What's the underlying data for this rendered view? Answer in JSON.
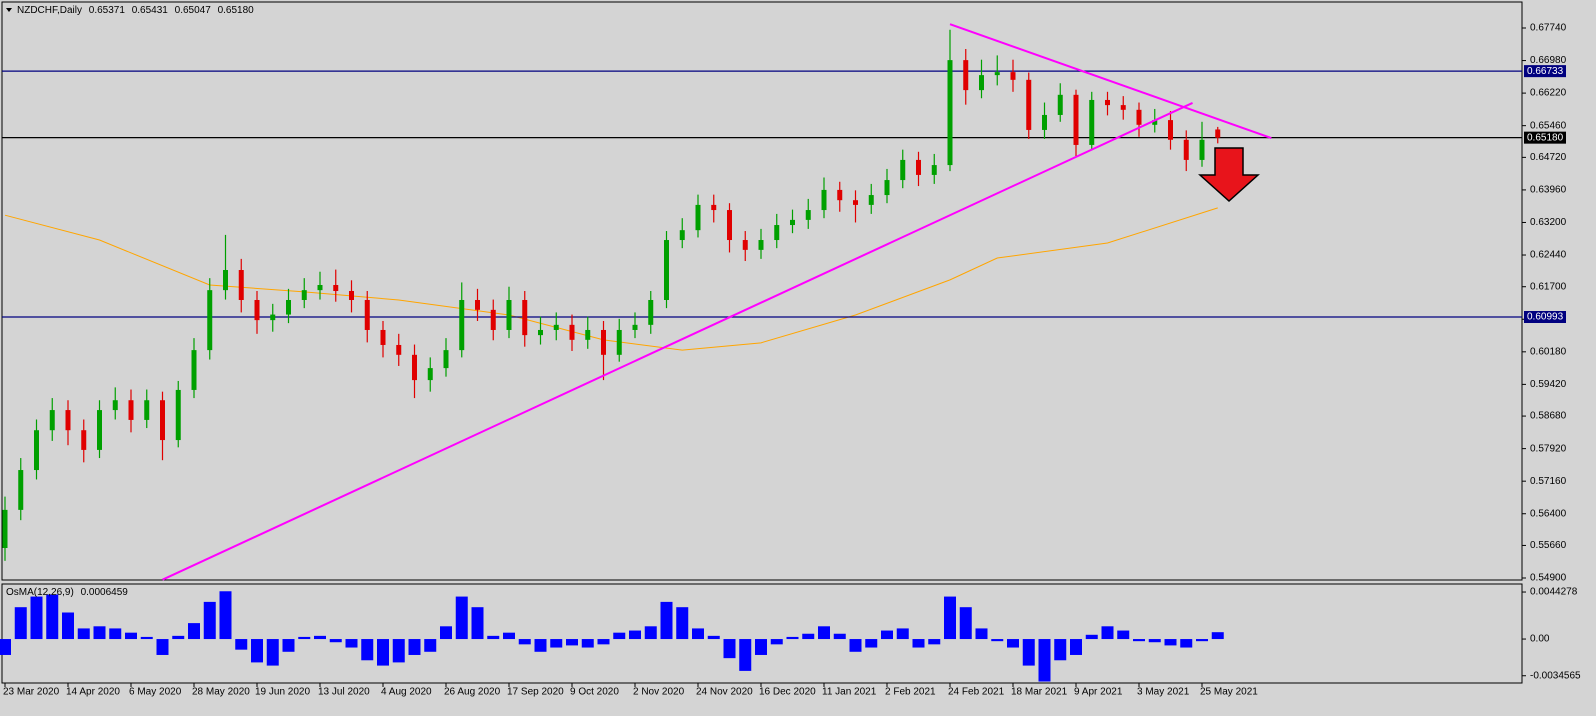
{
  "chart_data": {
    "type": "candlestick",
    "symbol": "NZDCHF,Daily",
    "header_values": [
      0.65371,
      0.65431,
      0.65047,
      {
        "value": 0.6518,
        "label": "0.65180"
      }
    ],
    "categories": [
      "23 Mar 2020",
      null,
      null,
      null,
      "14 Apr 2020",
      null,
      null,
      null,
      "6 May 2020",
      null,
      null,
      null,
      "28 May 2020",
      null,
      null,
      null,
      "19 Jun 2020",
      null,
      null,
      null,
      "13 Jul 2020",
      null,
      null,
      null,
      "4 Aug 2020",
      null,
      null,
      null,
      "26 Aug 2020",
      null,
      null,
      null,
      "17 Sep 2020",
      null,
      null,
      null,
      "9 Oct 2020",
      null,
      null,
      null,
      "2 Nov 2020",
      null,
      null,
      null,
      "24 Nov 2020",
      null,
      null,
      null,
      "16 Dec 2020",
      null,
      null,
      null,
      "11 Jan 2021",
      null,
      null,
      null,
      "2 Feb 2021",
      null,
      null,
      null,
      "24 Feb 2021",
      null,
      null,
      null,
      "18 Mar 2021",
      null,
      null,
      null,
      "9 Apr 2021",
      null,
      null,
      null,
      "3 May 2021",
      null,
      null,
      null,
      "25 May 2021",
      null
    ],
    "open": [
      0.556,
      0.5649,
      0.5742,
      0.5835,
      0.5882,
      0.5835,
      0.5789,
      0.5882,
      0.5905,
      0.5859,
      0.5905,
      0.5812,
      0.5929,
      0.6022,
      0.6162,
      0.6209,
      0.6139,
      0.6092,
      0.6105,
      0.6139,
      0.6162,
      0.6174,
      0.616,
      0.6139,
      0.6069,
      0.6034,
      0.6011,
      0.5952,
      0.598,
      0.6022,
      0.6139,
      0.6116,
      0.6069,
      0.6139,
      0.6057,
      0.6069,
      0.6081,
      0.6046,
      0.6069,
      0.6011,
      0.6069,
      0.6081,
      0.6139,
      0.6279,
      0.6302,
      0.6361,
      0.6349,
      0.6279,
      0.6256,
      0.6279,
      0.6314,
      0.6326,
      0.6349,
      0.6396,
      0.6372,
      0.6361,
      0.6384,
      0.6419,
      0.6466,
      0.6431,
      0.6454,
      0.6699,
      0.6629,
      0.6664,
      0.6671,
      0.6653,
      0.6536,
      0.6571,
      0.6618,
      0.6501,
      0.6606,
      0.6594,
      0.6583,
      0.6548,
      0.6559,
      0.6513,
      0.6466,
      0.65371
    ],
    "high": [
      0.568,
      0.577,
      0.586,
      0.591,
      0.5905,
      0.586,
      0.5905,
      0.5935,
      0.593,
      0.593,
      0.5925,
      0.595,
      0.605,
      0.619,
      0.6291,
      0.6235,
      0.616,
      0.613,
      0.6165,
      0.619,
      0.6205,
      0.621,
      0.6185,
      0.616,
      0.609,
      0.606,
      0.6035,
      0.6005,
      0.605,
      0.618,
      0.6165,
      0.614,
      0.617,
      0.616,
      0.61,
      0.611,
      0.6105,
      0.61,
      0.609,
      0.6095,
      0.611,
      0.616,
      0.63,
      0.633,
      0.6385,
      0.6385,
      0.6365,
      0.63,
      0.6305,
      0.634,
      0.635,
      0.6375,
      0.6425,
      0.6415,
      0.6395,
      0.641,
      0.6445,
      0.649,
      0.6485,
      0.648,
      0.677,
      0.6725,
      0.67,
      0.671,
      0.67,
      0.667,
      0.66,
      0.6645,
      0.663,
      0.6625,
      0.6625,
      0.6615,
      0.66,
      0.6585,
      0.658,
      0.6535,
      0.6555,
      0.65431
    ],
    "low": [
      0.553,
      0.5625,
      0.572,
      0.581,
      0.58,
      0.576,
      0.577,
      0.586,
      0.583,
      0.584,
      0.5765,
      0.5795,
      0.591,
      0.6,
      0.614,
      0.611,
      0.606,
      0.6065,
      0.6085,
      0.612,
      0.614,
      0.6135,
      0.611,
      0.604,
      0.6005,
      0.5985,
      0.591,
      0.5925,
      0.596,
      0.6005,
      0.609,
      0.6045,
      0.605,
      0.603,
      0.6035,
      0.6045,
      0.602,
      0.6025,
      0.5952,
      0.5995,
      0.605,
      0.606,
      0.612,
      0.626,
      0.6285,
      0.632,
      0.625,
      0.623,
      0.6235,
      0.626,
      0.6295,
      0.6305,
      0.633,
      0.6345,
      0.632,
      0.634,
      0.6365,
      0.64,
      0.6405,
      0.641,
      0.644,
      0.6595,
      0.661,
      0.664,
      0.6625,
      0.6515,
      0.6515,
      0.6555,
      0.6475,
      0.649,
      0.657,
      0.656,
      0.652,
      0.653,
      0.649,
      0.644,
      0.645,
      0.65047
    ],
    "close": [
      0.5649,
      0.5742,
      0.5835,
      0.5882,
      0.5835,
      0.5789,
      0.5882,
      0.5905,
      0.5859,
      0.5905,
      0.5812,
      0.5929,
      0.6022,
      0.6162,
      0.6209,
      0.6139,
      0.6092,
      0.6105,
      0.6139,
      0.6162,
      0.6174,
      0.616,
      0.6139,
      0.6069,
      0.6034,
      0.6011,
      0.5952,
      0.598,
      0.6022,
      0.6139,
      0.6116,
      0.6069,
      0.6139,
      0.6057,
      0.6069,
      0.6081,
      0.6046,
      0.6069,
      0.6011,
      0.6069,
      0.6081,
      0.6139,
      0.6279,
      0.6302,
      0.6361,
      0.6349,
      0.6279,
      0.6256,
      0.6279,
      0.6314,
      0.6326,
      0.6349,
      0.6396,
      0.6372,
      0.6361,
      0.6384,
      0.6419,
      0.6466,
      0.6431,
      0.6454,
      0.6699,
      0.6629,
      0.6664,
      0.6671,
      0.6653,
      0.6536,
      0.6571,
      0.6618,
      0.6501,
      0.6606,
      0.6594,
      0.6583,
      0.6548,
      0.6559,
      0.6513,
      0.6466,
      0.6513,
      0.6518
    ],
    "up_color": "#00a000",
    "down_color": "#e00000",
    "ylim": [
      0.54853,
      0.68347
    ],
    "yticks": [
      {
        "value": 0.6774,
        "label": "0.67740"
      },
      {
        "value": 0.6698,
        "label": "0.66980"
      },
      {
        "value": 0.6622,
        "label": "0.66220"
      },
      {
        "value": 0.6546,
        "label": "0.65460"
      },
      {
        "value": 0.6472,
        "label": "0.64720"
      },
      {
        "value": 0.6396,
        "label": "0.63960"
      },
      {
        "value": 0.632,
        "label": "0.63200"
      },
      {
        "value": 0.6244,
        "label": "0.62440"
      },
      {
        "value": 0.617,
        "label": "0.61700"
      },
      {
        "value": 0.6094,
        "label": "0.60940"
      },
      {
        "value": 0.6018,
        "label": "0.60180"
      },
      {
        "value": 0.5942,
        "label": "0.59420"
      },
      {
        "value": 0.5868,
        "label": "0.58680"
      },
      {
        "value": 0.5792,
        "label": "0.57920"
      },
      {
        "value": 0.5716,
        "label": "0.57160"
      },
      {
        "value": 0.564,
        "label": "0.56400"
      },
      {
        "value": 0.5566,
        "label": "0.55660"
      },
      {
        "value": 0.549,
        "label": "0.54900"
      }
    ],
    "levels": [
      {
        "value": 0.66733,
        "label": "0.66733"
      },
      {
        "value": 0.6518,
        "label": "0.65180"
      },
      {
        "value": 0.60993,
        "label": "0.60993"
      }
    ],
    "level_colors": [
      "#00007f",
      "#000000",
      "#00007f"
    ],
    "moving_average": {
      "color": "#ffa500",
      "x": [
        0,
        6,
        13,
        19,
        25,
        32,
        38,
        43,
        48,
        54,
        60,
        63,
        70,
        77
      ],
      "values": [
        0.6337,
        0.6279,
        0.6174,
        0.6158,
        0.6139,
        0.6104,
        0.6046,
        0.6022,
        0.6039,
        0.6104,
        0.6186,
        0.6237,
        0.6272,
        0.6354
      ]
    },
    "trendlines": {
      "color": "#ff00ff",
      "lines": [
        {
          "x": [
            10,
            75.4
          ],
          "values": [
            0.5486,
            0.6599
          ]
        },
        {
          "x": [
            60,
            80.4
          ],
          "values": [
            0.6783,
            0.6517
          ]
        }
      ]
    },
    "indicator": {
      "type": "bar",
      "label": "OsMA(12,26,9)",
      "value": 0.0006459,
      "color": "#0000ff",
      "ylim": [
        -0.00414,
        0.00509
      ],
      "yticks": [
        0.0044278,
        {
          "value": 0,
          "label": "0.00"
        },
        -0.0034565
      ],
      "values": [
        -0.0015,
        0.003,
        0.004,
        0.0042,
        0.0025,
        0.001,
        0.0012,
        0.001,
        0.0006,
        0.0002,
        -0.0015,
        0.0003,
        0.0015,
        0.0035,
        0.0045,
        -0.001,
        -0.0022,
        -0.0025,
        -0.0012,
        0.0002,
        0.0003,
        -0.0003,
        -0.0008,
        -0.002,
        -0.0025,
        -0.0022,
        -0.0015,
        -0.0012,
        0.0012,
        0.004,
        0.003,
        0.0003,
        0.0006,
        -0.0005,
        -0.0012,
        -0.0008,
        -0.0006,
        -0.0008,
        -0.0005,
        0.0006,
        0.0008,
        0.0012,
        0.0035,
        0.003,
        0.001,
        0.0003,
        -0.0018,
        -0.003,
        -0.0015,
        -0.0005,
        0.0002,
        0.0005,
        0.0012,
        0.0005,
        -0.0012,
        -0.0008,
        0.0008,
        0.001,
        -0.0008,
        -0.0005,
        0.004,
        0.003,
        0.001,
        -0.0002,
        -0.0008,
        -0.0025,
        -0.004,
        -0.002,
        -0.0015,
        0.0004,
        0.0012,
        0.0008,
        -0.0002,
        -0.0003,
        -0.0006,
        -0.0008,
        -0.0002,
        0.0006459
      ]
    }
  }
}
